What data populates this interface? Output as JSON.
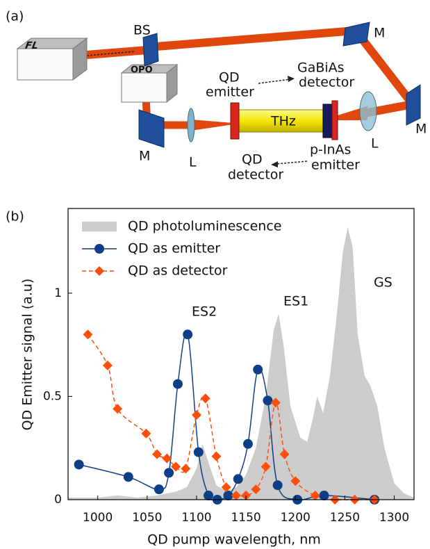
{
  "panel_a": {
    "tag": "(a)",
    "fl": "FL",
    "opo": "OPO",
    "bs": "BS",
    "mirrors": [
      "M",
      "M",
      "M"
    ],
    "lenses": [
      "L",
      "L"
    ],
    "thz": "THz",
    "qd_emitter": [
      "QD",
      "emitter"
    ],
    "gabias_detector": [
      "GaBiAs",
      "detector"
    ],
    "qd_detector": [
      "QD",
      "detector"
    ],
    "pinas_emitter": [
      "p-InAs",
      "emitter"
    ]
  },
  "chart_data": {
    "type": "line",
    "tag": "(b)",
    "x_label": "QD pump wavelength, nm",
    "y_label": "QD Emitter signal (a.u)",
    "xlim": [
      970,
      1320
    ],
    "ylim": [
      0,
      1.41
    ],
    "xticks": [
      1000,
      1050,
      1100,
      1150,
      1200,
      1250,
      1300
    ],
    "yticks": [
      0,
      0.5,
      1
    ],
    "annotations": [
      "ES2",
      "ES1",
      "GS"
    ],
    "series": [
      {
        "name": "QD photoluminescence",
        "color": "#cccccc",
        "kind": "area",
        "x": [
          970,
          1000,
          1020,
          1040,
          1060,
          1080,
          1090,
          1100,
          1106,
          1112,
          1120,
          1130,
          1140,
          1150,
          1160,
          1170,
          1178,
          1183,
          1188,
          1195,
          1205,
          1212,
          1218,
          1222,
          1228,
          1235,
          1242,
          1248,
          1253,
          1258,
          1263,
          1270,
          1276,
          1283,
          1290,
          1300,
          1310,
          1320
        ],
        "values": [
          0.01,
          0.01,
          0.02,
          0.01,
          0.02,
          0.04,
          0.06,
          0.15,
          0.27,
          0.18,
          0.07,
          0.04,
          0.06,
          0.12,
          0.25,
          0.5,
          0.82,
          0.9,
          0.75,
          0.45,
          0.3,
          0.28,
          0.4,
          0.5,
          0.42,
          0.6,
          0.9,
          1.2,
          1.32,
          1.22,
          0.8,
          0.6,
          0.55,
          0.45,
          0.25,
          0.08,
          0.03,
          0.01
        ]
      },
      {
        "name": "QD as emitter",
        "color": "#0e3f86",
        "kind": "line",
        "marker": "circle",
        "dashed": false,
        "x": [
          981,
          1031,
          1062,
          1072,
          1081,
          1091,
          1102,
          1112,
          1121,
          1132,
          1142,
          1152,
          1162,
          1172,
          1182,
          1202,
          1229,
          1280
        ],
        "values": [
          0.17,
          0.11,
          0.05,
          0.13,
          0.56,
          0.8,
          0.23,
          0.02,
          0.0,
          0.02,
          0.1,
          0.27,
          0.63,
          0.48,
          0.07,
          0.0,
          0.02,
          0.0
        ]
      },
      {
        "name": "QD as detector",
        "color": "#ff4d0a",
        "kind": "line",
        "marker": "diamond",
        "dashed": true,
        "x": [
          990,
          1010,
          1020,
          1049,
          1060,
          1070,
          1079,
          1089,
          1100,
          1109,
          1120,
          1130,
          1140,
          1150,
          1160,
          1170,
          1180,
          1189,
          1200,
          1220,
          1240,
          1260,
          1280
        ],
        "values": [
          0.8,
          0.65,
          0.44,
          0.32,
          0.22,
          0.2,
          0.16,
          0.15,
          0.41,
          0.49,
          0.21,
          0.06,
          0.02,
          0.02,
          0.05,
          0.16,
          0.47,
          0.22,
          0.09,
          0.02,
          0.0,
          0.0,
          0.0
        ]
      }
    ]
  }
}
